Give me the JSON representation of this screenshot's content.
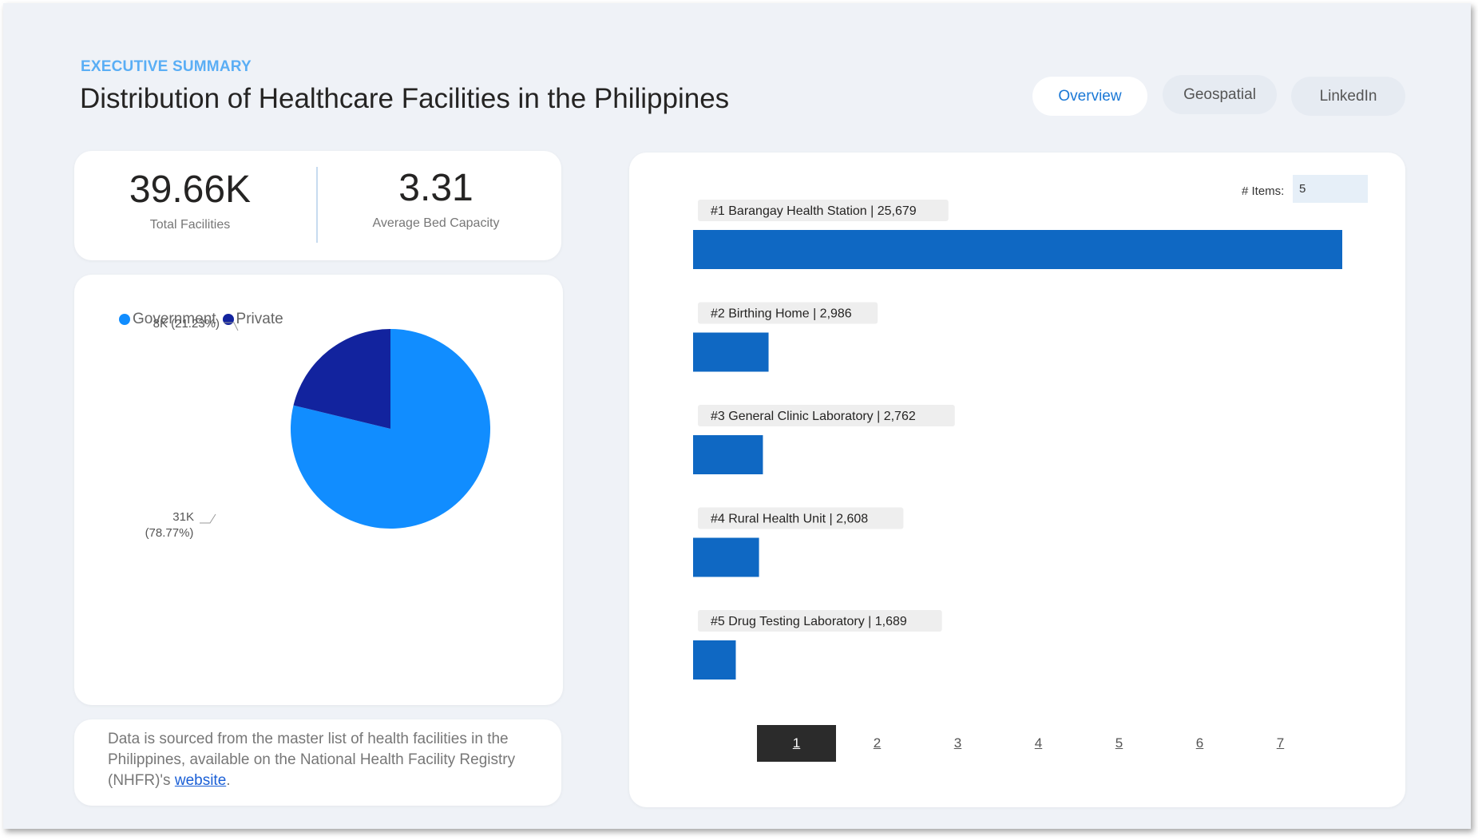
{
  "header": {
    "eyebrow": "EXECUTIVE SUMMARY",
    "title": "Distribution of Healthcare Facilities in the Philippines"
  },
  "nav": {
    "tabs": [
      {
        "label": "Overview",
        "active": true
      },
      {
        "label": "Geospatial",
        "active": false
      },
      {
        "label": "LinkedIn",
        "active": false
      }
    ]
  },
  "kpis": {
    "total_value": "39.66K",
    "total_label": "Total Facilities",
    "bed_value": "3.31",
    "bed_label": "Average Bed Capacity"
  },
  "note": {
    "text": "Data is sourced from the master list of health facilities in the Philippines,  available on the National Health Facility Registry (NHFR)'s ",
    "link": "website",
    "end": "."
  },
  "bar_controls": {
    "items_label": "# Items:",
    "items_value": "5"
  },
  "pager": {
    "pages": [
      "1",
      "2",
      "3",
      "4",
      "5",
      "6",
      "7"
    ],
    "active": "1"
  },
  "colors": {
    "government": "#118dff",
    "private": "#12239e",
    "bar": "#0f68c3",
    "chip": "#eeeeee"
  },
  "chart_data": [
    {
      "type": "pie",
      "legend": [
        "Government",
        "Private"
      ],
      "legend_position": "top-left",
      "slices": [
        {
          "name": "Government",
          "value": 31,
          "label_value": "31K",
          "label_pct": "(78.77%)",
          "percent": 78.77
        },
        {
          "name": "Private",
          "value": 8,
          "label_value": "8K",
          "label_pct": "(21.23%)",
          "percent": 21.23
        }
      ]
    },
    {
      "type": "bar",
      "orientation": "horizontal",
      "categories": [
        "#1 Barangay Health Station | 25,679",
        "#2 Birthing Home | 2,986",
        "#3 General Clinic Laboratory | 2,762",
        "#4 Rural Health Unit | 2,608",
        "#5 Drug Testing Laboratory | 1,689"
      ],
      "values": [
        25679,
        2986,
        2762,
        2608,
        1689
      ],
      "xlim": [
        0,
        25679
      ]
    }
  ]
}
